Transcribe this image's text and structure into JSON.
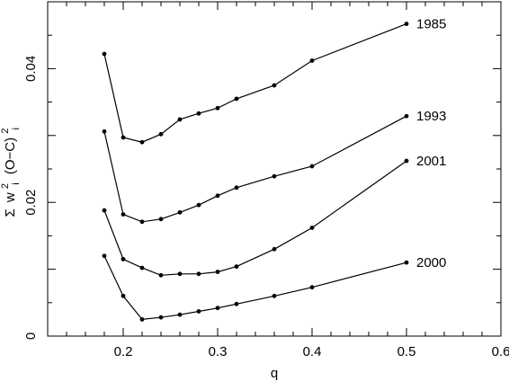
{
  "chart_data": {
    "type": "line",
    "title": "",
    "xlabel": "q",
    "ylabel": "Σ wᵢ² (O−C)ᵢ²",
    "ylabel_parts": {
      "sum": "Σ",
      "w": "w",
      "sub_i": "i",
      "sup_2": "2",
      "oc": "(O−C)"
    },
    "xlim": [
      0.12,
      0.6
    ],
    "ylim": [
      0.0,
      0.05
    ],
    "xticks": [
      0.2,
      0.3,
      0.4,
      0.5,
      0.6
    ],
    "xtick_labels": [
      "0.2",
      "0.3",
      "0.4",
      "0.5",
      "0.6"
    ],
    "yticks": [
      0,
      0.02,
      0.04
    ],
    "ytick_labels": [
      "0",
      "0.02",
      "0.04"
    ],
    "grid": false,
    "legend": "inline labels at right end of each series",
    "x": [
      0.18,
      0.2,
      0.22,
      0.24,
      0.26,
      0.28,
      0.3,
      0.32,
      0.36,
      0.4,
      0.5
    ],
    "series": [
      {
        "name": "1985",
        "values": [
          0.0422,
          0.0297,
          0.029,
          0.0302,
          0.0324,
          0.0333,
          0.0341,
          0.0355,
          0.0375,
          0.0412,
          0.0467
        ]
      },
      {
        "name": "1993",
        "values": [
          0.0306,
          0.0182,
          0.0171,
          0.0175,
          0.0185,
          0.0196,
          0.021,
          0.0222,
          0.0239,
          0.0254,
          0.0329
        ]
      },
      {
        "name": "2001",
        "values": [
          0.0188,
          0.0115,
          0.0102,
          0.0091,
          0.0093,
          0.0093,
          0.0096,
          0.0104,
          0.013,
          0.0162,
          0.0262
        ]
      },
      {
        "name": "2000",
        "values": [
          0.012,
          0.006,
          0.0025,
          0.0028,
          0.0032,
          0.0037,
          0.0042,
          0.0048,
          0.006,
          0.0073,
          0.011
        ]
      }
    ]
  }
}
